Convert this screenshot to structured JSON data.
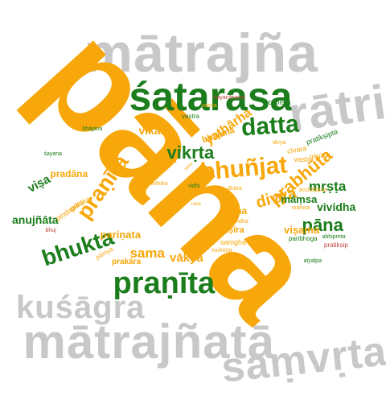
{
  "colors": {
    "orange": "#f7a70a",
    "green": "#1b7d1b",
    "gray": "#c8c8c8",
    "red": "#c0463c",
    "background": "#ffffff"
  },
  "words": [
    {
      "id": "mAtrajna",
      "text": "mātrajña",
      "color": "gray"
    },
    {
      "id": "pana-big",
      "text": "pāna",
      "color": "orange"
    },
    {
      "id": "satarasa",
      "text": "śatarasa",
      "color": "green"
    },
    {
      "id": "ratri",
      "text": "rātri",
      "color": "gray"
    },
    {
      "id": "matrajnata",
      "text": "mātrajñatā",
      "color": "gray"
    },
    {
      "id": "samvrta",
      "text": "saṃvṛta",
      "color": "gray"
    },
    {
      "id": "kusagra",
      "text": "kuśāgra",
      "color": "gray"
    },
    {
      "id": "pranita-big",
      "text": "praṇīta",
      "color": "green"
    },
    {
      "id": "datta",
      "text": "datta",
      "color": "green"
    },
    {
      "id": "yatharha",
      "text": "yathārha",
      "color": "orange"
    },
    {
      "id": "vikrta",
      "text": "vikṛta",
      "color": "green"
    },
    {
      "id": "bhunjat",
      "text": "bhuñjat",
      "color": "orange"
    },
    {
      "id": "prabhuta",
      "text": "prabhūta",
      "color": "orange"
    },
    {
      "id": "divya",
      "text": "divya",
      "color": "orange"
    },
    {
      "id": "mrsta",
      "text": "mṛṣṭa",
      "color": "green"
    },
    {
      "id": "vividha",
      "text": "vividha",
      "color": "green"
    },
    {
      "id": "pana-small",
      "text": "pāna",
      "color": "green"
    },
    {
      "id": "pranita-rot",
      "text": "praṇīta",
      "color": "orange"
    },
    {
      "id": "bhukta",
      "text": "bhukta",
      "color": "green"
    },
    {
      "id": "visa",
      "text": "viṣa",
      "color": "green"
    },
    {
      "id": "pradana",
      "text": "pradāna",
      "color": "orange"
    },
    {
      "id": "anujnata",
      "text": "anujñāta",
      "color": "green"
    },
    {
      "id": "sama",
      "text": "sama",
      "color": "orange"
    },
    {
      "id": "vakya",
      "text": "vākya",
      "color": "orange"
    },
    {
      "id": "parinata",
      "text": "pariṇata",
      "color": "orange"
    },
    {
      "id": "vikala",
      "text": "vikāla",
      "color": "orange"
    },
    {
      "id": "ucchista",
      "text": "ucchiṣṭa",
      "color": "green"
    },
    {
      "id": "vastra-1",
      "text": "vastra",
      "color": "orange"
    },
    {
      "id": "bhajana-1",
      "text": "bhājana",
      "color": "green"
    },
    {
      "id": "bhajana-2",
      "text": "bhājana",
      "color": "orange"
    },
    {
      "id": "sayanasana",
      "text": "śayanāsana",
      "color": "red"
    },
    {
      "id": "vastra-2",
      "text": "vastra",
      "color": "green"
    },
    {
      "id": "pratiksipta",
      "text": "pratikṣipta",
      "color": "green"
    },
    {
      "id": "civara",
      "text": "cīvara",
      "color": "orange"
    },
    {
      "id": "paniya",
      "text": "pānīya",
      "color": "orange"
    },
    {
      "id": "vastra-3",
      "text": "vastra",
      "color": "orange"
    },
    {
      "id": "divya-small",
      "text": "divya",
      "color": "orange"
    },
    {
      "id": "sayana",
      "text": "śayana",
      "color": "green"
    },
    {
      "id": "asana",
      "text": "āsana",
      "color": "orange"
    },
    {
      "id": "rasa-1",
      "text": "rasa",
      "color": "orange"
    },
    {
      "id": "arthika",
      "text": "arthika",
      "color": "orange"
    },
    {
      "id": "vidhi",
      "text": "vidhi",
      "color": "green"
    },
    {
      "id": "vela",
      "text": "velā",
      "color": "orange"
    },
    {
      "id": "ahara",
      "text": "āhāra",
      "color": "orange"
    },
    {
      "id": "acchadana",
      "text": "ācchādana",
      "color": "orange"
    },
    {
      "id": "mamsa-1",
      "text": "māṃsa",
      "color": "green"
    },
    {
      "id": "mamsa-2",
      "text": "māṃsa",
      "color": "orange"
    },
    {
      "id": "visama",
      "text": "viṣama",
      "color": "orange"
    },
    {
      "id": "guruka",
      "text": "guruka",
      "color": "orange"
    },
    {
      "id": "pindapata",
      "text": "piṇḍapāta",
      "color": "orange"
    },
    {
      "id": "bhuj",
      "text": "bhuj",
      "color": "red"
    },
    {
      "id": "rasa-2",
      "text": "rasa",
      "color": "orange"
    },
    {
      "id": "luha",
      "text": "lūha",
      "color": "orange"
    },
    {
      "id": "vividha-small",
      "text": "vividha",
      "color": "orange"
    },
    {
      "id": "ksira",
      "text": "kṣīra",
      "color": "orange"
    },
    {
      "id": "samgha",
      "text": "saṃgha",
      "color": "orange"
    },
    {
      "id": "muhurta",
      "text": "muhūrta",
      "color": "orange"
    },
    {
      "id": "paribhoga",
      "text": "paribhoga",
      "color": "green"
    },
    {
      "id": "abhipreta",
      "text": "abhipreta",
      "color": "green"
    },
    {
      "id": "pratiksip",
      "text": "pratikṣip",
      "color": "red"
    },
    {
      "id": "prakara",
      "text": "prakāra",
      "color": "orange"
    },
    {
      "id": "pamya",
      "text": "pāmya",
      "color": "orange"
    },
    {
      "id": "atyalpa",
      "text": "atyalpa",
      "color": "green"
    }
  ]
}
